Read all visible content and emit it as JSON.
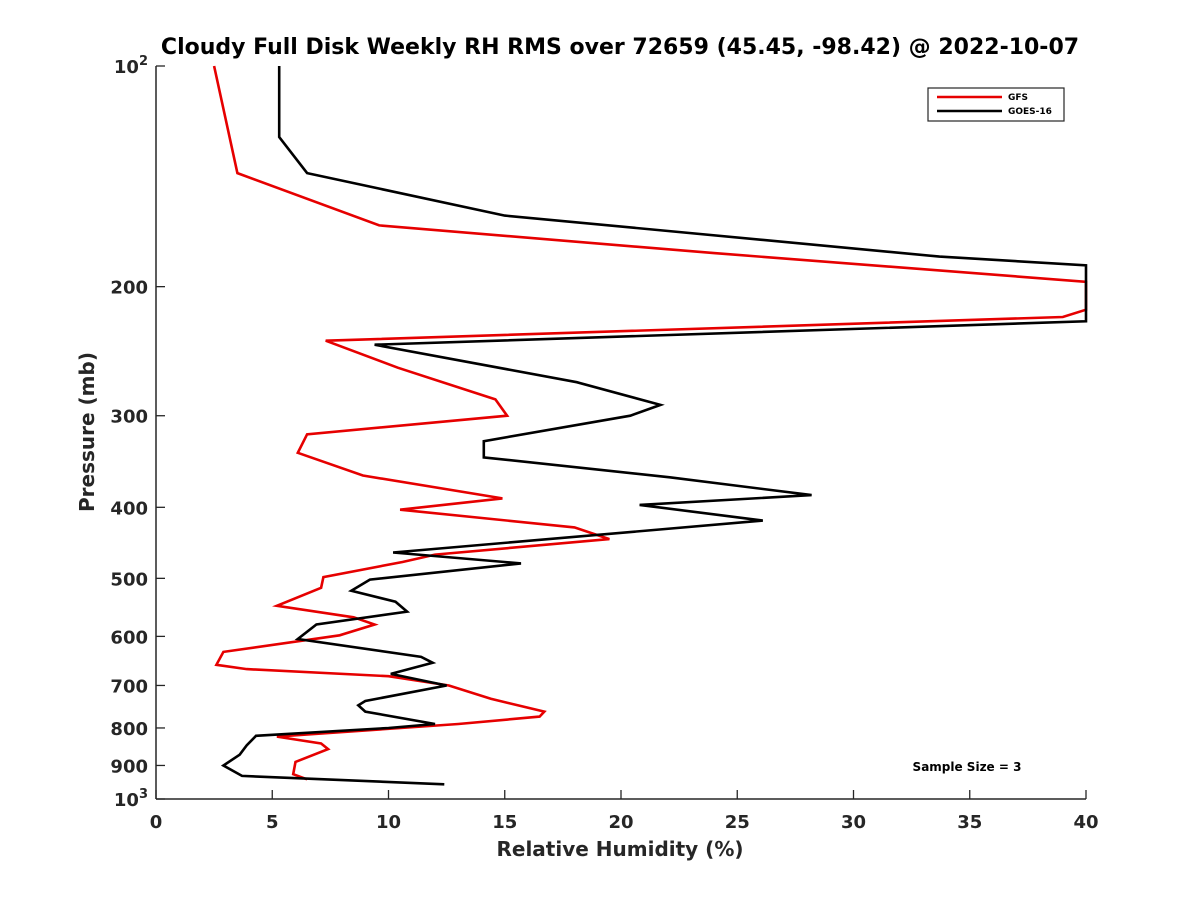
{
  "chart_data": {
    "type": "line",
    "title": "Cloudy Full Disk Weekly RH RMS over 72659 (45.45, -98.42) @ 2022-10-07",
    "xlabel": "Relative Humidity (%)",
    "ylabel": "Pressure (mb)",
    "xlim": [
      0,
      40
    ],
    "ylim": [
      100,
      1000
    ],
    "y_scale": "log",
    "y_reversed": true,
    "x_ticks": [
      "0",
      "5",
      "10",
      "15",
      "20",
      "25",
      "30",
      "35",
      "40"
    ],
    "y_ticks": [
      {
        "value": 100,
        "label": "10",
        "sup": "2"
      },
      {
        "value": 200,
        "label": "200"
      },
      {
        "value": 300,
        "label": "300"
      },
      {
        "value": 400,
        "label": "400"
      },
      {
        "value": 500,
        "label": "500"
      },
      {
        "value": 600,
        "label": "600"
      },
      {
        "value": 700,
        "label": "700"
      },
      {
        "value": 800,
        "label": "800"
      },
      {
        "value": 900,
        "label": "900"
      },
      {
        "value": 1000,
        "label": "10",
        "sup": "3"
      }
    ],
    "legend_position": "top-right",
    "grid": false,
    "annotation": "Sample Size = 3",
    "series": [
      {
        "name": "GFS",
        "color": "#e60000",
        "points": [
          [
            2.5,
            100
          ],
          [
            3.5,
            140
          ],
          [
            9.6,
            165
          ],
          [
            24.0,
            180
          ],
          [
            40.0,
            197
          ],
          [
            40.0,
            215
          ],
          [
            39.0,
            220
          ],
          [
            7.3,
            237
          ],
          [
            10.4,
            258
          ],
          [
            14.6,
            285
          ],
          [
            15.1,
            300
          ],
          [
            6.5,
            318
          ],
          [
            6.1,
            337
          ],
          [
            8.9,
            362
          ],
          [
            14.9,
            389
          ],
          [
            10.5,
            403
          ],
          [
            18.0,
            426
          ],
          [
            19.5,
            442
          ],
          [
            12.0,
            464
          ],
          [
            10.6,
            475
          ],
          [
            7.2,
            498
          ],
          [
            7.1,
            515
          ],
          [
            5.2,
            545
          ],
          [
            8.5,
            565
          ],
          [
            9.4,
            578
          ],
          [
            7.9,
            598
          ],
          [
            2.9,
            630
          ],
          [
            2.6,
            656
          ],
          [
            3.9,
            665
          ],
          [
            10.0,
            680
          ],
          [
            12.6,
            700
          ],
          [
            14.4,
            730
          ],
          [
            16.7,
            760
          ],
          [
            16.5,
            772
          ],
          [
            13.0,
            790
          ],
          [
            5.2,
            822
          ],
          [
            7.1,
            840
          ],
          [
            7.4,
            855
          ],
          [
            6.0,
            890
          ],
          [
            5.9,
            925
          ],
          [
            6.5,
            940
          ]
        ]
      },
      {
        "name": "GOES-16",
        "color": "#000000",
        "points": [
          [
            5.3,
            100
          ],
          [
            5.3,
            125
          ],
          [
            6.5,
            140
          ],
          [
            15.0,
            160
          ],
          [
            33.7,
            182
          ],
          [
            40.0,
            187
          ],
          [
            40.0,
            223
          ],
          [
            9.4,
            240
          ],
          [
            18.1,
            270
          ],
          [
            21.7,
            290
          ],
          [
            20.4,
            300
          ],
          [
            14.1,
            325
          ],
          [
            14.1,
            342
          ],
          [
            22.1,
            364
          ],
          [
            28.2,
            385
          ],
          [
            20.8,
            397
          ],
          [
            26.1,
            417
          ],
          [
            10.2,
            461
          ],
          [
            15.7,
            477
          ],
          [
            9.2,
            502
          ],
          [
            8.4,
            520
          ],
          [
            10.3,
            538
          ],
          [
            10.8,
            555
          ],
          [
            6.9,
            578
          ],
          [
            6.1,
            605
          ],
          [
            11.4,
            640
          ],
          [
            11.9,
            652
          ],
          [
            10.1,
            675
          ],
          [
            12.5,
            700
          ],
          [
            9.0,
            735
          ],
          [
            8.7,
            745
          ],
          [
            9.0,
            760
          ],
          [
            12.0,
            790
          ],
          [
            10.0,
            800
          ],
          [
            4.3,
            820
          ],
          [
            3.9,
            845
          ],
          [
            3.6,
            870
          ],
          [
            2.9,
            900
          ],
          [
            3.7,
            930
          ],
          [
            12.4,
            955
          ]
        ]
      }
    ]
  }
}
